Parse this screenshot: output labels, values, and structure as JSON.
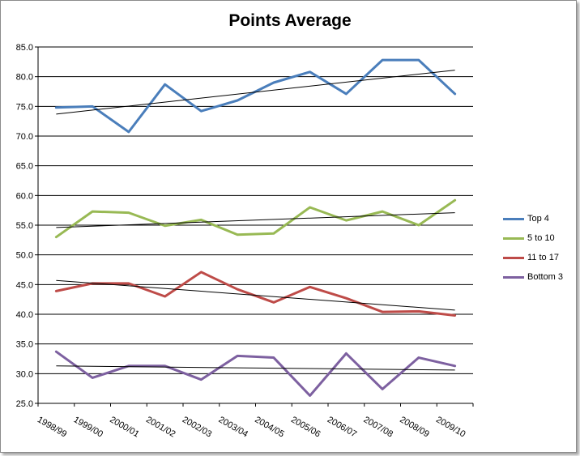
{
  "chart_data": {
    "type": "line",
    "title": "Points Average",
    "xlabel": "",
    "ylabel": "",
    "categories": [
      "1998/99",
      "1999/00",
      "2000/01",
      "2001/02",
      "2002/03",
      "2003/04",
      "2004/05",
      "2005/06",
      "2006/07",
      "2007/08",
      "2008/09",
      "2009/10"
    ],
    "ylim": [
      25,
      85
    ],
    "yticks": [
      "25.0",
      "30.0",
      "35.0",
      "40.0",
      "45.0",
      "50.0",
      "55.0",
      "60.0",
      "65.0",
      "70.0",
      "75.0",
      "80.0",
      "85.0"
    ],
    "grid": true,
    "legend_position": "right",
    "series": [
      {
        "name": "Top 4",
        "color": "#4a7ebb",
        "values": [
          74.8,
          75.0,
          70.7,
          78.7,
          74.2,
          76.0,
          79.0,
          80.8,
          77.1,
          82.8,
          82.8,
          77.1
        ],
        "trend": [
          73.7,
          81.1
        ]
      },
      {
        "name": "5 to 10",
        "color": "#98b954",
        "values": [
          53.0,
          57.3,
          57.1,
          54.9,
          55.9,
          53.4,
          53.6,
          58.0,
          55.8,
          57.3,
          55.0,
          59.2
        ],
        "trend": [
          54.6,
          57.1
        ]
      },
      {
        "name": "11 to 17",
        "color": "#be4b48",
        "values": [
          43.9,
          45.2,
          45.2,
          43.0,
          47.1,
          44.2,
          42.0,
          44.6,
          42.7,
          40.4,
          40.5,
          39.8
        ],
        "trend": [
          45.7,
          40.7
        ]
      },
      {
        "name": "Bottom 3",
        "color": "#7d60a0",
        "values": [
          33.7,
          29.3,
          31.3,
          31.3,
          29.0,
          33.0,
          32.7,
          26.3,
          33.4,
          27.4,
          32.7,
          31.3
        ],
        "trend": [
          31.3,
          30.6
        ]
      }
    ]
  }
}
